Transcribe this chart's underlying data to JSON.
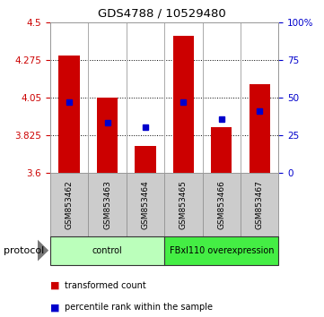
{
  "title": "GDS4788 / 10529480",
  "samples": [
    "GSM853462",
    "GSM853463",
    "GSM853464",
    "GSM853465",
    "GSM853466",
    "GSM853467"
  ],
  "red_values": [
    4.3,
    4.05,
    3.76,
    4.42,
    3.87,
    4.13
  ],
  "blue_values": [
    4.02,
    3.9,
    3.87,
    4.02,
    3.92,
    3.97
  ],
  "y_min": 3.6,
  "y_max": 4.5,
  "y_ticks_left": [
    3.6,
    3.825,
    4.05,
    4.275,
    4.5
  ],
  "y_ticks_right": [
    0,
    25,
    50,
    75,
    100
  ],
  "right_labels": [
    "0",
    "25",
    "50",
    "75",
    "100%"
  ],
  "groups": [
    {
      "label": "control",
      "indices": [
        0,
        1,
        2
      ],
      "color": "#bbffbb"
    },
    {
      "label": "FBxl110 overexpression",
      "indices": [
        3,
        4,
        5
      ],
      "color": "#44ee44"
    }
  ],
  "bar_width": 0.55,
  "bar_color_red": "#cc0000",
  "bar_color_blue": "#0000cc",
  "background_color": "#ffffff",
  "plot_bg_color": "#ffffff",
  "tick_label_color_left": "#cc0000",
  "tick_label_color_right": "#0000cc",
  "legend_items": [
    {
      "color": "#cc0000",
      "label": "transformed count"
    },
    {
      "color": "#0000cc",
      "label": "percentile rank within the sample"
    }
  ],
  "protocol_label": "protocol"
}
